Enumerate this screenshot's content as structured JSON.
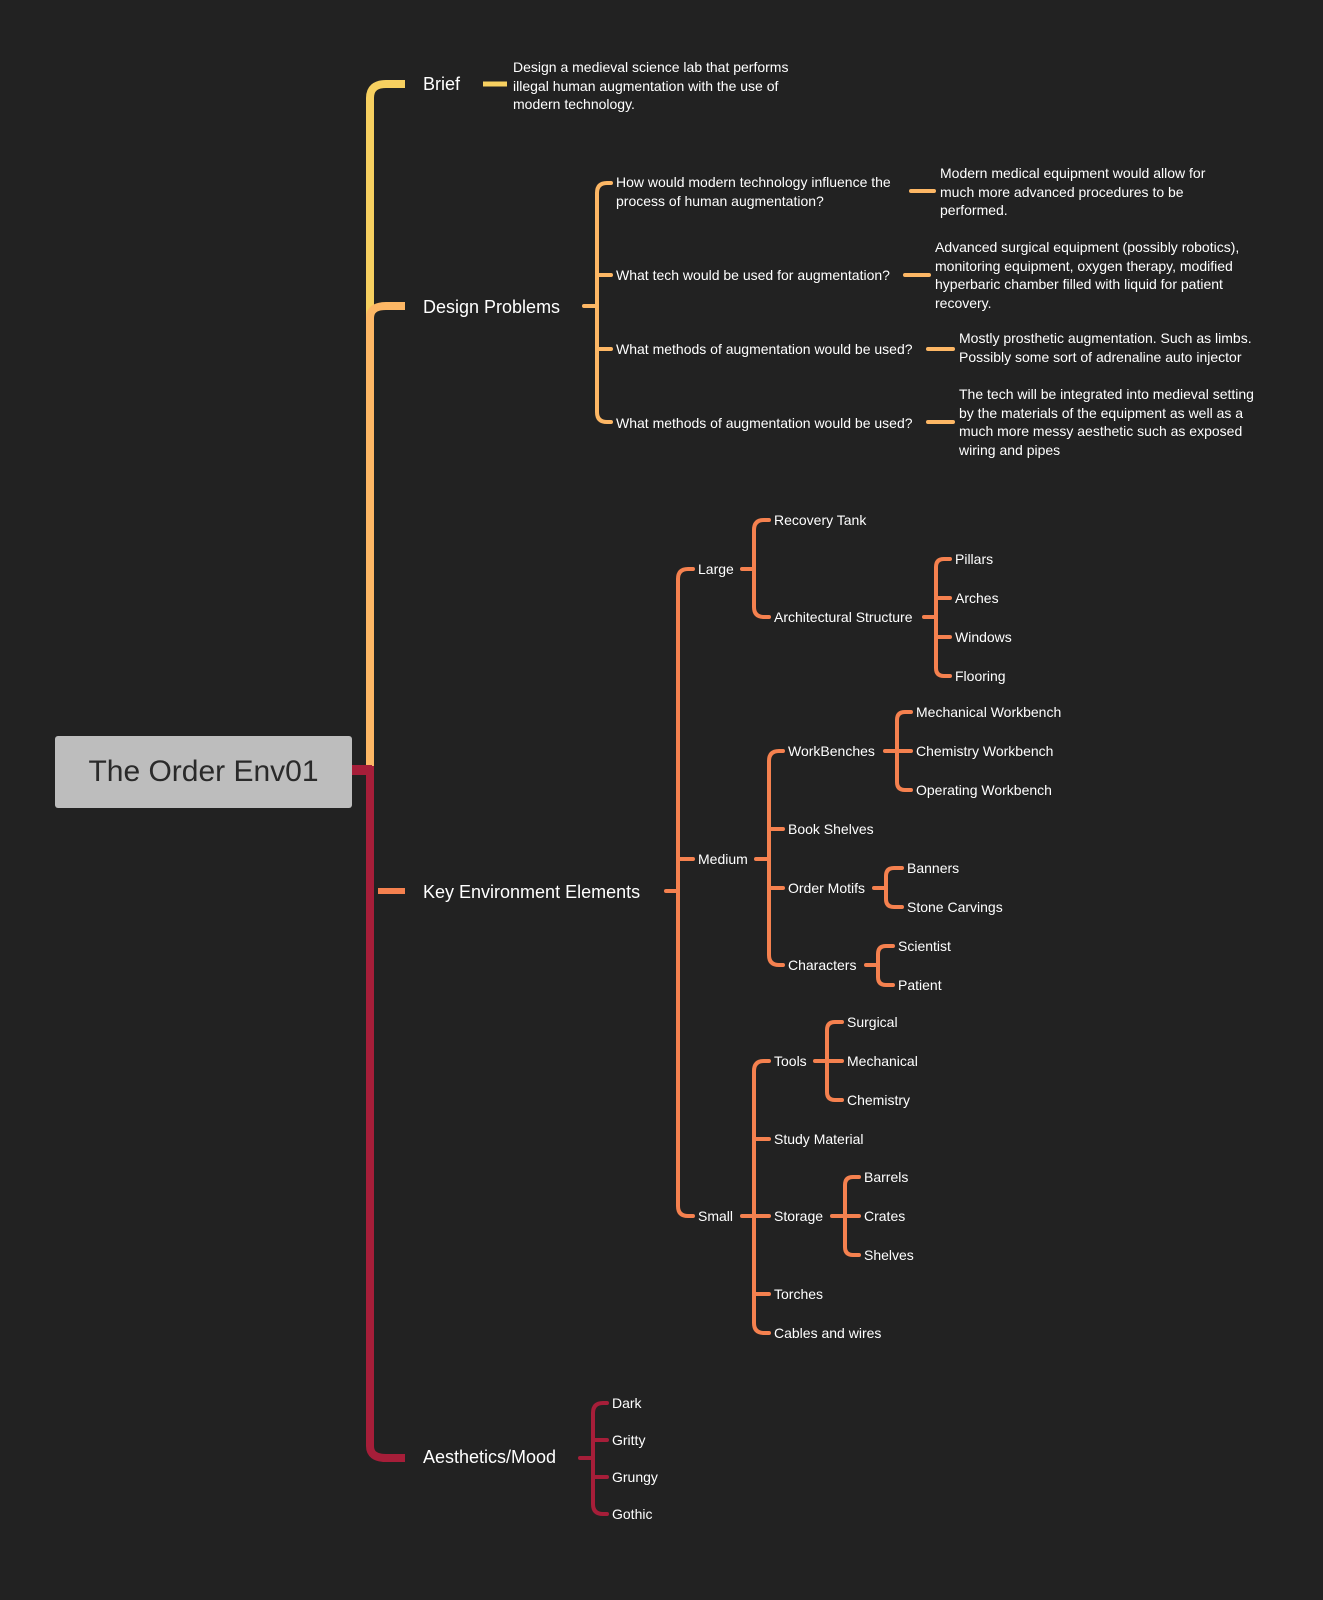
{
  "root": "The Order Env01",
  "colors": {
    "background": "#222222",
    "brief": "#F7D060",
    "design_problems": "#FDB765",
    "key_elements": "#F5814F",
    "aesthetics": "#A61E39",
    "root_box": "#BDBDBD"
  },
  "brief": {
    "label": "Brief",
    "detail": "Design a medieval science lab that performs illegal human augmentation with the use of modern technology."
  },
  "design_problems": {
    "label": "Design Problems",
    "items": [
      {
        "question": "How would modern technology influence the process of human augmentation?",
        "answer": "Modern medical equipment would allow for much more advanced procedures to be performed."
      },
      {
        "question": "What tech would be used for augmentation?",
        "answer": "Advanced surgical equipment (possibly robotics), monitoring equipment, oxygen therapy, modified hyperbaric chamber filled with liquid for patient recovery."
      },
      {
        "question": "What methods of augmentation would be used?",
        "answer": "Mostly prosthetic augmentation. Such as limbs. Possibly some sort of adrenaline auto injector"
      },
      {
        "question": "What methods of augmentation would be used?",
        "answer": "The tech will be integrated into medieval setting by the materials of the equipment as well as a much more messy aesthetic such as exposed wiring and pipes"
      }
    ]
  },
  "key_elements": {
    "label": "Key Environment Elements",
    "large": {
      "label": "Large",
      "recovery_tank": "Recovery Tank",
      "architectural_structure": {
        "label": "Architectural Structure",
        "items": [
          "Pillars",
          "Arches",
          "Windows",
          "Flooring"
        ]
      }
    },
    "medium": {
      "label": "Medium",
      "workbenches": {
        "label": "WorkBenches",
        "items": [
          "Mechanical Workbench",
          "Chemistry Workbench",
          "Operating Workbench"
        ]
      },
      "book_shelves": "Book Shelves",
      "order_motifs": {
        "label": "Order Motifs",
        "items": [
          "Banners",
          "Stone Carvings"
        ]
      },
      "characters": {
        "label": "Characters",
        "items": [
          "Scientist",
          "Patient"
        ]
      }
    },
    "small": {
      "label": "Small",
      "tools": {
        "label": "Tools",
        "items": [
          "Surgical",
          "Mechanical",
          "Chemistry"
        ]
      },
      "study_material": "Study Material",
      "storage": {
        "label": "Storage",
        "items": [
          "Barrels",
          "Crates",
          "Shelves"
        ]
      },
      "torches": "Torches",
      "cables": "Cables and wires"
    }
  },
  "aesthetics": {
    "label": "Aesthetics/Mood",
    "items": [
      "Dark",
      "Gritty",
      "Grungy",
      "Gothic"
    ]
  }
}
